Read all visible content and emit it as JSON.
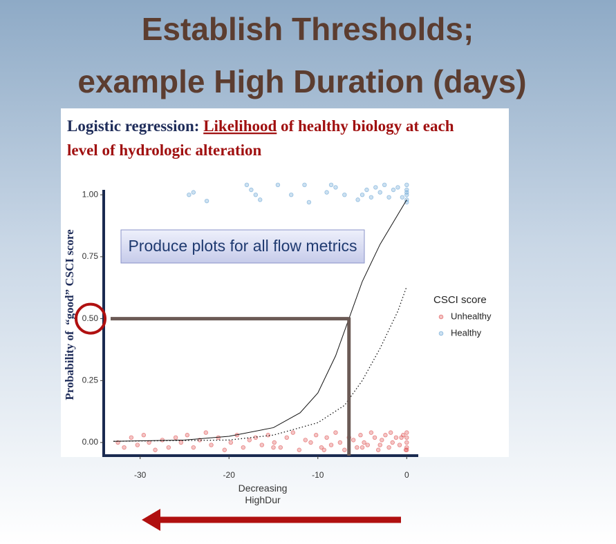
{
  "chart_data": {
    "type": "scatter",
    "title": [
      "Establish Thresholds;",
      "example High Duration (days)"
    ],
    "subtitle": {
      "lead": "Logistic regression:",
      "emphasis": "Likelihood",
      "rest": [
        "of healthy biology at each",
        "level of hydrologic alteration"
      ]
    },
    "callout": "Produce plots for all flow metrics",
    "x_label": [
      "Decreasing",
      "HighDur"
    ],
    "y_label": "Probability of  “good” CSCI score",
    "legend_title": "CSCI score",
    "legend_position": "right",
    "xlim": [
      -34.1,
      1.3
    ],
    "ylim": [
      -0.053,
      1.02
    ],
    "xticks": [
      -30,
      -20,
      -10,
      0
    ],
    "yticks": [
      {
        "value": 0,
        "label": "0.00"
      },
      {
        "value": 0.25,
        "label": "0.25"
      },
      {
        "value": 0.5,
        "label": "0.50"
      },
      {
        "value": 0.75,
        "label": "0.75"
      },
      {
        "value": 1,
        "label": "1.00"
      }
    ],
    "series": [
      {
        "name": "Unhealthy",
        "color": "#e05a5a",
        "x": [
          -32.5,
          -31.8,
          -31,
          -30.3,
          -29.6,
          -29,
          -28.3,
          -27.5,
          -26.8,
          -26,
          -25.4,
          -24.7,
          -24,
          -23.3,
          -22.6,
          -22,
          -21.2,
          -20.5,
          -19.8,
          -19.1,
          -18.4,
          -17.7,
          -17,
          -16.3,
          -15.6,
          -14.9,
          -14.2,
          -13.5,
          -12.8,
          -12.1,
          -11.4,
          -10.8,
          -10.2,
          -9.6,
          -9,
          -8.5,
          -8,
          -7.5,
          -7,
          -6.5,
          -6,
          -5.6,
          -5.2,
          -4.8,
          -4.4,
          -4,
          -3.6,
          -3.2,
          -2.8,
          -2.4,
          -2,
          -1.6,
          -1.2,
          -0.8,
          -0.4,
          -0.1,
          0,
          0,
          0,
          0,
          0,
          -15,
          -9.3,
          -5,
          -3,
          -1.8,
          -0.6
        ],
        "values": [
          0.0,
          -0.02,
          0.02,
          -0.01,
          0.03,
          0.0,
          -0.03,
          0.01,
          -0.02,
          0.02,
          0.0,
          0.03,
          -0.02,
          0.01,
          0.04,
          -0.01,
          0.02,
          -0.03,
          0.0,
          0.03,
          -0.02,
          0.01,
          0.02,
          -0.01,
          0.03,
          0.0,
          -0.02,
          0.02,
          0.04,
          -0.03,
          0.01,
          0.0,
          0.03,
          -0.02,
          0.02,
          -0.01,
          0.04,
          0.0,
          -0.03,
          0.02,
          0.01,
          -0.02,
          0.03,
          0.0,
          -0.01,
          0.04,
          0.02,
          -0.03,
          0.01,
          0.03,
          -0.02,
          0.0,
          0.02,
          -0.01,
          0.03,
          -0.03,
          0.0,
          0.02,
          -0.02,
          0.04,
          -0.03,
          -0.02,
          -0.03,
          -0.02,
          -0.01,
          0.04,
          0.02
        ]
      },
      {
        "name": "Healthy",
        "color": "#6fa8d6",
        "x": [
          -24.5,
          -24,
          -22.5,
          -18,
          -17.5,
          -17,
          -16.5,
          -14.5,
          -13,
          -11.5,
          -11,
          -9,
          -8.5,
          -8,
          -7,
          -5.5,
          -5,
          -4.5,
          -4,
          -3.5,
          -3,
          -2.5,
          -2,
          -1.5,
          -1,
          -0.5,
          0,
          0,
          0,
          0,
          0,
          0
        ],
        "values": [
          1.0,
          1.01,
          0.975,
          1.04,
          1.02,
          1.0,
          0.98,
          1.04,
          1.0,
          1.04,
          0.97,
          1.01,
          1.04,
          1.03,
          1.0,
          0.98,
          1.0,
          1.02,
          0.99,
          1.03,
          1.01,
          1.04,
          0.99,
          1.02,
          1.03,
          0.99,
          1.0,
          1.02,
          0.98,
          1.04,
          0.97,
          1.01
        ]
      }
    ],
    "curves": [
      {
        "style": "solid",
        "x": [
          -33,
          -25,
          -20,
          -15,
          -12,
          -10,
          -8,
          -6.5,
          -5,
          -3,
          -1,
          0
        ],
        "values": [
          0.005,
          0.01,
          0.025,
          0.06,
          0.12,
          0.2,
          0.35,
          0.5,
          0.65,
          0.8,
          0.92,
          0.98
        ]
      },
      {
        "style": "dotted",
        "x": [
          -33,
          -20,
          -15,
          -10,
          -7,
          -5,
          -3,
          -1,
          0
        ],
        "values": [
          0.005,
          0.01,
          0.03,
          0.08,
          0.15,
          0.25,
          0.38,
          0.53,
          0.63
        ]
      }
    ],
    "threshold": {
      "x": -6.5,
      "y": 0.5
    }
  }
}
